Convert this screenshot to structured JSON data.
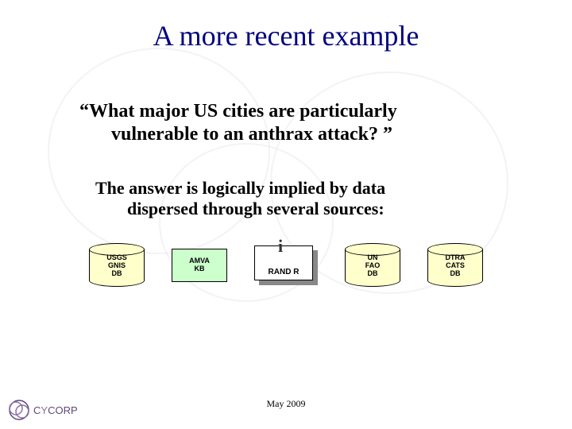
{
  "slide": {
    "title": "A more recent example",
    "question_line1": "“What major US cities are particularly",
    "question_line2": "vulnerable to an anthrax attack? ”",
    "answer_line1": "The answer is logically implied by data",
    "answer_line2": "dispersed through several sources:",
    "footer_date": "May 2009"
  },
  "sources": [
    {
      "type": "cylinder",
      "label": "USGS\nGNIS\nDB",
      "fill": "#ffffcc"
    },
    {
      "type": "box",
      "label": "AMVA\nKB",
      "fill": "#ccffcc"
    },
    {
      "type": "report",
      "label": "RAND R",
      "fill": "#ffffff"
    },
    {
      "type": "cylinder",
      "label": "UN\nFAO\nDB",
      "fill": "#ffffcc"
    },
    {
      "type": "cylinder",
      "label": "DTRA\nCATS\nDB",
      "fill": "#ffffcc"
    }
  ],
  "colors": {
    "title": "#000080",
    "text": "#000000",
    "background": "#ffffff",
    "swirl": "#e8e8f0",
    "logo": "#604878"
  },
  "logo_text": "CYCORP"
}
